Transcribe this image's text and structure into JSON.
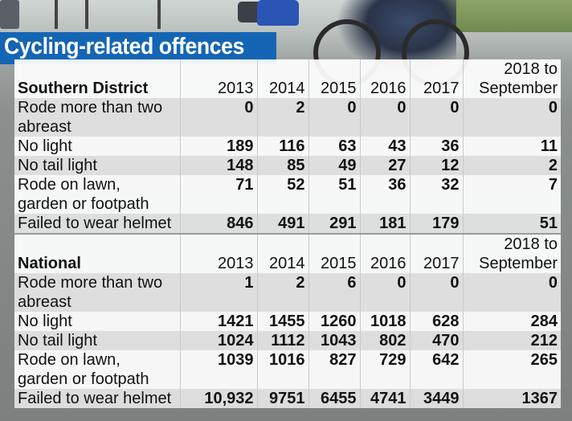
{
  "title": "Cycling-related offences",
  "years": [
    "2013",
    "2014",
    "2015",
    "2016",
    "2017"
  ],
  "last_period": [
    "2018 to",
    "September"
  ],
  "southern": {
    "heading": "Southern District",
    "rows": [
      {
        "label": [
          "Rode more than two",
          "abreast"
        ],
        "values": [
          "0",
          "2",
          "0",
          "0",
          "0",
          "0"
        ]
      },
      {
        "label": [
          "No light"
        ],
        "values": [
          "189",
          "116",
          "63",
          "43",
          "36",
          "11"
        ]
      },
      {
        "label": [
          "No tail light"
        ],
        "values": [
          "148",
          "85",
          "49",
          "27",
          "12",
          "2"
        ]
      },
      {
        "label": [
          "Rode on lawn,",
          "garden or footpath"
        ],
        "values": [
          "71",
          "52",
          "51",
          "36",
          "32",
          "7"
        ]
      },
      {
        "label": [
          "Failed to wear helmet"
        ],
        "values": [
          "846",
          "491",
          "291",
          "181",
          "179",
          "51"
        ]
      }
    ]
  },
  "national": {
    "heading": "National",
    "rows": [
      {
        "label": [
          "Rode more than two",
          "abreast"
        ],
        "values": [
          "1",
          "2",
          "6",
          "0",
          "0",
          "0"
        ]
      },
      {
        "label": [
          "No light"
        ],
        "values": [
          "1421",
          "1455",
          "1260",
          "1018",
          "628",
          "284"
        ]
      },
      {
        "label": [
          "No tail light"
        ],
        "values": [
          "1024",
          "1112",
          "1043",
          "802",
          "470",
          "212"
        ]
      },
      {
        "label": [
          "Rode on lawn,",
          "garden or footpath"
        ],
        "values": [
          "1039",
          "1016",
          "827",
          "729",
          "642",
          "265"
        ]
      },
      {
        "label": [
          "Failed to wear helmet"
        ],
        "values": [
          "10,932",
          "9751",
          "6455",
          "4741",
          "3449",
          "1367"
        ]
      }
    ]
  }
}
